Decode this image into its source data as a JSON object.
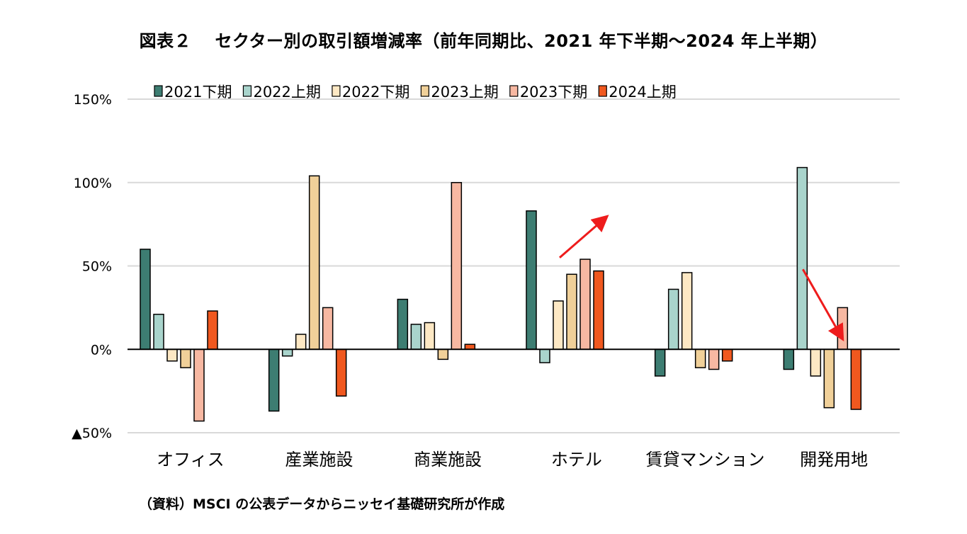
{
  "page": {
    "title": "図表２　 セクター別の取引額増減率（前年同期比、2021 年下半期～2024 年上半期）",
    "source": "（資料）MSCI の公表データからニッセイ基礎研究所が作成"
  },
  "chart_data": {
    "type": "bar",
    "title": "図表２　 セクター別の取引額増減率（前年同期比、2021 年下半期～2024 年上半期）",
    "categories": [
      "オフィス",
      "産業施設",
      "商業施設",
      "ホテル",
      "賃貸マンション",
      "開発用地"
    ],
    "series": [
      {
        "name": "2021下期",
        "color": "#3d7d72",
        "values": [
          60,
          -37,
          30,
          83,
          -16,
          -12
        ]
      },
      {
        "name": "2022上期",
        "color": "#a9d4cc",
        "values": [
          21,
          -4,
          15,
          -8,
          36,
          109
        ]
      },
      {
        "name": "2022下期",
        "color": "#fde8c4",
        "values": [
          -7,
          9,
          16,
          29,
          46,
          -16
        ]
      },
      {
        "name": "2023上期",
        "color": "#f0d099",
        "values": [
          -11,
          104,
          -6,
          45,
          -11,
          -35
        ]
      },
      {
        "name": "2023下期",
        "color": "#f7b8a2",
        "values": [
          -43,
          25,
          100,
          54,
          -12,
          25
        ]
      },
      {
        "name": "2024上期",
        "color": "#f0581f",
        "values": [
          23,
          -28,
          3,
          47,
          -7,
          -36
        ]
      }
    ],
    "yticks": [
      {
        "value": 150,
        "label": "150%"
      },
      {
        "value": 100,
        "label": "100%"
      },
      {
        "value": 50,
        "label": "50%"
      },
      {
        "value": 0,
        "label": "0%"
      },
      {
        "value": -50,
        "label": "▲50%"
      }
    ],
    "ylim": [
      -50,
      150
    ],
    "grid": true,
    "legend_position": "top",
    "annotations": [
      {
        "type": "arrow",
        "color": "#ee1c1c",
        "category": "ホテル",
        "direction": "up",
        "from_value": 55,
        "to_value": 79
      },
      {
        "type": "arrow",
        "color": "#ee1c1c",
        "category": "開発用地",
        "direction": "down",
        "from_value": 48,
        "to_value": 7
      }
    ]
  }
}
